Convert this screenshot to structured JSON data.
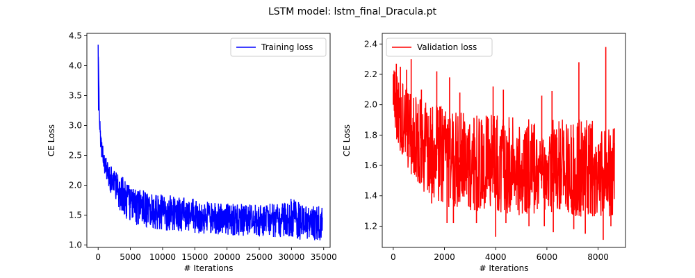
{
  "figure": {
    "title": "LSTM model: lstm_final_Dracula.pt"
  },
  "chart_data": [
    {
      "type": "line",
      "xlabel": "# Iterations",
      "ylabel": "CE Loss",
      "xlim": [
        -1750,
        36000
      ],
      "ylim": [
        0.96,
        4.54
      ],
      "xticks": [
        0,
        5000,
        10000,
        15000,
        20000,
        25000,
        30000,
        35000
      ],
      "yticks": [
        1.0,
        1.5,
        2.0,
        2.5,
        3.0,
        3.5,
        4.0,
        4.5
      ],
      "xtick_labels": [
        "0",
        "5000",
        "10000",
        "15000",
        "20000",
        "25000",
        "30000",
        "35000"
      ],
      "ytick_labels": [
        "1.0",
        "1.5",
        "2.0",
        "2.5",
        "3.0",
        "3.5",
        "4.0",
        "4.5"
      ],
      "legend_position": "top-right",
      "grid": false,
      "series": [
        {
          "name": "Training loss",
          "color": "#0000ff",
          "x": [
            0,
            200,
            400,
            600,
            1000,
            1500,
            2000,
            3000,
            4000,
            5000,
            6000,
            8000,
            10000,
            12500,
            15000,
            17500,
            20000,
            22500,
            25000,
            27500,
            30000,
            32500,
            34800
          ],
          "y": [
            4.35,
            3.2,
            2.8,
            2.6,
            2.35,
            2.2,
            2.1,
            1.95,
            1.85,
            1.75,
            1.68,
            1.6,
            1.55,
            1.52,
            1.48,
            1.46,
            1.44,
            1.42,
            1.41,
            1.4,
            1.39,
            1.38,
            1.37
          ],
          "band_upper": [
            4.35,
            3.25,
            2.95,
            2.75,
            2.53,
            2.4,
            2.32,
            2.2,
            2.12,
            2.0,
            1.95,
            1.88,
            1.85,
            1.82,
            1.78,
            1.72,
            1.7,
            1.7,
            1.68,
            1.7,
            1.78,
            1.65,
            1.65
          ],
          "band_lower": [
            4.35,
            3.0,
            2.55,
            2.35,
            2.15,
            2.0,
            1.85,
            1.65,
            1.45,
            1.4,
            1.33,
            1.28,
            1.25,
            1.22,
            1.2,
            1.18,
            1.16,
            1.15,
            1.14,
            1.12,
            1.1,
            1.08,
            1.07
          ]
        }
      ]
    },
    {
      "type": "line",
      "xlabel": "# Iterations",
      "ylabel": "CE Loss",
      "xlim": [
        -430,
        9070
      ],
      "ylim": [
        1.06,
        2.47
      ],
      "xticks": [
        0,
        2000,
        4000,
        6000,
        8000
      ],
      "yticks": [
        1.2,
        1.4,
        1.6,
        1.8,
        2.0,
        2.2,
        2.4
      ],
      "xtick_labels": [
        "0",
        "2000",
        "4000",
        "6000",
        "8000"
      ],
      "ytick_labels": [
        "1.2",
        "1.4",
        "1.6",
        "1.8",
        "2.0",
        "2.2",
        "2.4"
      ],
      "legend_position": "top-left",
      "grid": false,
      "series": [
        {
          "name": "Validation loss",
          "color": "#ff0000",
          "x": [
            0,
            250,
            500,
            1000,
            1500,
            2000,
            3000,
            4000,
            5000,
            6000,
            7000,
            8000,
            8640
          ],
          "y": [
            2.0,
            1.85,
            1.8,
            1.72,
            1.68,
            1.65,
            1.6,
            1.58,
            1.56,
            1.55,
            1.55,
            1.54,
            1.54
          ],
          "band_upper": [
            2.25,
            2.15,
            2.12,
            2.05,
            2.0,
            2.0,
            1.95,
            1.93,
            1.92,
            1.9,
            1.92,
            1.9,
            1.85
          ],
          "band_lower": [
            1.85,
            1.7,
            1.6,
            1.45,
            1.38,
            1.33,
            1.3,
            1.28,
            1.27,
            1.27,
            1.26,
            1.25,
            1.25
          ],
          "spikes": [
            {
              "x": 0,
              "y": 2.2
            },
            {
              "x": 120,
              "y": 2.27
            },
            {
              "x": 280,
              "y": 2.25
            },
            {
              "x": 520,
              "y": 2.23
            },
            {
              "x": 700,
              "y": 2.3
            },
            {
              "x": 1100,
              "y": 2.1
            },
            {
              "x": 1700,
              "y": 2.22
            },
            {
              "x": 2200,
              "y": 2.18
            },
            {
              "x": 2600,
              "y": 2.08
            },
            {
              "x": 3900,
              "y": 2.12
            },
            {
              "x": 4300,
              "y": 2.1
            },
            {
              "x": 5800,
              "y": 2.06
            },
            {
              "x": 6200,
              "y": 2.09
            },
            {
              "x": 7250,
              "y": 2.28
            },
            {
              "x": 8300,
              "y": 2.38
            },
            {
              "x": 400,
              "y": 1.72
            },
            {
              "x": 1050,
              "y": 1.48
            },
            {
              "x": 1500,
              "y": 1.35
            },
            {
              "x": 2100,
              "y": 1.22
            },
            {
              "x": 2350,
              "y": 1.22
            },
            {
              "x": 3250,
              "y": 1.22
            },
            {
              "x": 4000,
              "y": 1.13
            },
            {
              "x": 4400,
              "y": 1.22
            },
            {
              "x": 5300,
              "y": 1.2
            },
            {
              "x": 5900,
              "y": 1.2
            },
            {
              "x": 6250,
              "y": 1.16
            },
            {
              "x": 7050,
              "y": 1.18
            },
            {
              "x": 7500,
              "y": 1.15
            },
            {
              "x": 8200,
              "y": 1.11
            },
            {
              "x": 8500,
              "y": 1.2
            }
          ]
        }
      ]
    }
  ]
}
